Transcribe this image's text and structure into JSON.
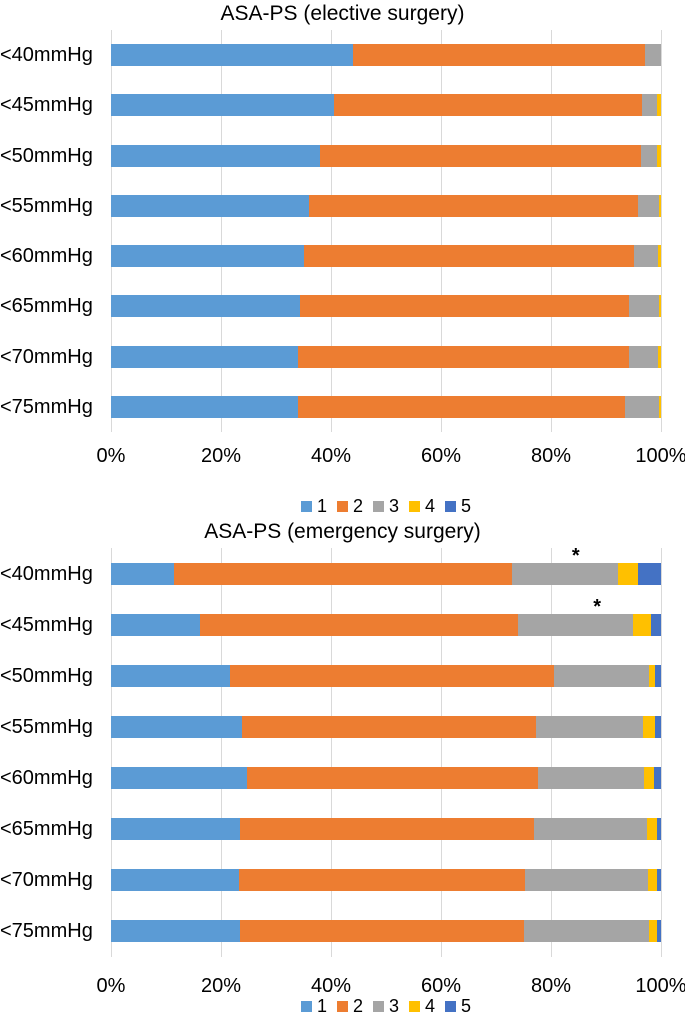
{
  "chart_data": [
    {
      "type": "bar",
      "orientation": "horizontal",
      "stacked": true,
      "title": "ASA-PS (elective surgery)",
      "categories": [
        "<40mmHg",
        "<45mmHg",
        "<50mmHg",
        "<55mmHg",
        "<60mmHg",
        "<65mmHg",
        "<70mmHg",
        "<75mmHg"
      ],
      "series": [
        {
          "name": "1",
          "color": "#5b9bd5",
          "values": [
            44.0,
            40.5,
            38.0,
            36.0,
            35.0,
            34.3,
            34.0,
            34.0
          ]
        },
        {
          "name": "2",
          "color": "#ed7d31",
          "values": [
            53.0,
            56.0,
            58.4,
            59.9,
            60.1,
            59.9,
            60.1,
            59.5
          ]
        },
        {
          "name": "3",
          "color": "#a5a5a5",
          "values": [
            3.0,
            2.8,
            2.8,
            3.7,
            4.3,
            5.4,
            5.4,
            6.1
          ]
        },
        {
          "name": "4",
          "color": "#ffc000",
          "values": [
            0.0,
            0.7,
            0.8,
            0.4,
            0.6,
            0.4,
            0.5,
            0.4
          ]
        },
        {
          "name": "5",
          "color": "#4472c4",
          "values": [
            0.0,
            0.0,
            0.0,
            0.0,
            0.0,
            0.0,
            0.0,
            0.0
          ]
        }
      ],
      "xlim": [
        0,
        100
      ],
      "tick_values": [
        0,
        20,
        40,
        60,
        80,
        100
      ],
      "x_ticks": [
        "0%",
        "20%",
        "40%",
        "60%",
        "80%",
        "100%"
      ],
      "grid": true,
      "legend_position": "bottom",
      "legend_labels": [
        "1",
        "2",
        "3",
        "4",
        "5"
      ],
      "annotations": []
    },
    {
      "type": "bar",
      "orientation": "horizontal",
      "stacked": true,
      "title": "ASA-PS (emergency surgery)",
      "categories": [
        "<40mmHg",
        "<45mmHg",
        "<50mmHg",
        "<55mmHg",
        "<60mmHg",
        "<65mmHg",
        "<70mmHg",
        "<75mmHg"
      ],
      "series": [
        {
          "name": "1",
          "color": "#5b9bd5",
          "values": [
            11.4,
            16.1,
            21.6,
            23.9,
            24.7,
            23.4,
            23.2,
            23.4
          ]
        },
        {
          "name": "2",
          "color": "#ed7d31",
          "values": [
            61.5,
            57.9,
            58.9,
            53.4,
            52.9,
            53.6,
            52.1,
            51.7
          ]
        },
        {
          "name": "3",
          "color": "#a5a5a5",
          "values": [
            19.3,
            21.0,
            17.4,
            19.4,
            19.3,
            20.5,
            22.4,
            22.7
          ]
        },
        {
          "name": "4",
          "color": "#ffc000",
          "values": [
            3.7,
            3.1,
            1.0,
            2.3,
            1.9,
            1.7,
            1.6,
            1.4
          ]
        },
        {
          "name": "5",
          "color": "#4472c4",
          "values": [
            4.1,
            1.9,
            1.1,
            1.0,
            1.2,
            0.8,
            0.7,
            0.8
          ]
        }
      ],
      "xlim": [
        0,
        100
      ],
      "tick_values": [
        0,
        20,
        40,
        60,
        80,
        100
      ],
      "x_ticks": [
        "0%",
        "20%",
        "40%",
        "60%",
        "80%",
        "100%"
      ],
      "grid": true,
      "legend_position": "bottom",
      "legend_labels": [
        "1",
        "2",
        "3",
        "4",
        "5"
      ],
      "annotations": [
        {
          "text": "*",
          "row": 0,
          "x_pct": 84.5
        },
        {
          "text": "*",
          "row": 1,
          "x_pct": 88.4
        }
      ]
    }
  ]
}
